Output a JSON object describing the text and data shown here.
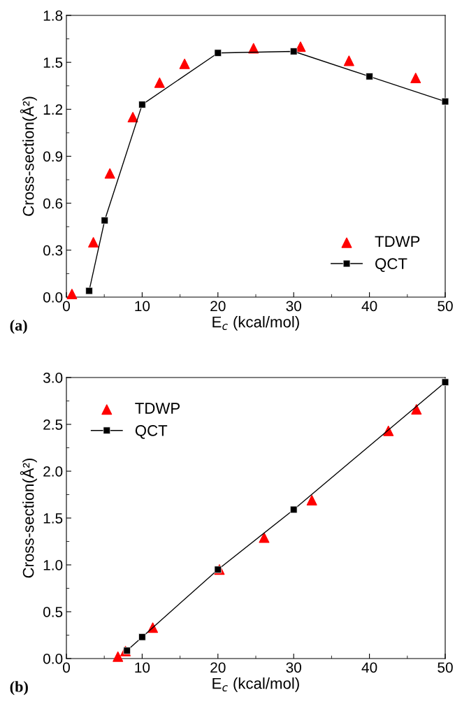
{
  "chart_data": [
    {
      "type": "scatter",
      "xlabel": "E$_{c}$ (kcal/mol)",
      "ylabel": "Cross-section(Å²)",
      "xlim": [
        0,
        50
      ],
      "xticks": [
        0,
        10,
        20,
        30,
        40,
        50
      ],
      "ylim": [
        0,
        1.8
      ],
      "yticks": [
        {
          "value": 0,
          "label": "0.0"
        },
        0.3,
        0.6,
        0.9,
        1.2,
        1.5,
        1.8
      ],
      "legend": "bottom right",
      "annotations": [
        "(a)"
      ],
      "series": [
        {
          "name": "TDWP",
          "marker": "triangle",
          "color": "#ff0000",
          "x": [
            0.73,
            3.56,
            5.74,
            8.77,
            12.3,
            15.6,
            24.7,
            30.9,
            37.3,
            46.1
          ],
          "values": [
            0.02,
            0.35,
            0.79,
            1.15,
            1.37,
            1.49,
            1.59,
            1.6,
            1.51,
            1.4
          ]
        },
        {
          "name": "QCT",
          "type": "line",
          "marker": "square",
          "line_style": "solid",
          "color": "#000000",
          "x": [
            3,
            5.05,
            10,
            20,
            30,
            40,
            50
          ],
          "values": [
            0.04,
            0.49,
            1.23,
            1.56,
            1.57,
            1.41,
            1.25
          ]
        }
      ]
    },
    {
      "type": "scatter",
      "xlabel": "E$_{c}$ (kcal/mol)",
      "ylabel": "Cross-section(Å²)",
      "xlim": [
        0,
        50
      ],
      "xticks": [
        0,
        10,
        20,
        30,
        40,
        50
      ],
      "ylim": [
        0,
        3
      ],
      "yticks": [
        {
          "value": 0,
          "label": "0.0"
        },
        0.5,
        {
          "value": 1,
          "label": "1.0"
        },
        1.5,
        {
          "value": 2,
          "label": "2.0"
        },
        2.5,
        {
          "value": 3,
          "label": "3.0"
        }
      ],
      "legend": "top left",
      "annotations": [
        "(b)"
      ],
      "series": [
        {
          "name": "TDWP",
          "marker": "triangle",
          "color": "#ff0000",
          "x": [
            6.8,
            7.8,
            11.4,
            20.2,
            26.1,
            32.4,
            42.5,
            46.2
          ],
          "values": [
            0.02,
            0.08,
            0.33,
            0.95,
            1.29,
            1.69,
            2.43,
            2.66
          ]
        },
        {
          "name": "QCT",
          "type": "line",
          "marker": "square",
          "line_style": "solid",
          "color": "#000000",
          "x": [
            8,
            10,
            20,
            30,
            50
          ],
          "values": [
            0.085,
            0.23,
            0.95,
            1.59,
            2.95
          ]
        }
      ]
    }
  ]
}
